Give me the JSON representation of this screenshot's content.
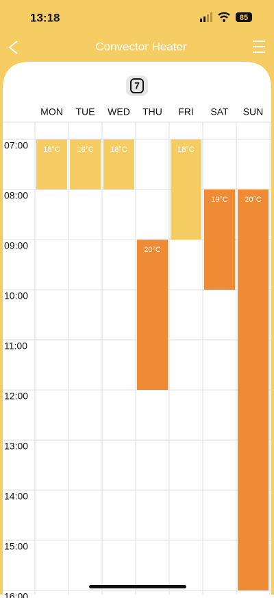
{
  "status_bar": {
    "time": "13:18",
    "battery": "85"
  },
  "header": {
    "title": "Convector Heater"
  },
  "program_icon": "7",
  "hours": [
    {
      "value": 7,
      "label": "07:00"
    },
    {
      "value": 8,
      "label": "08:00"
    },
    {
      "value": 9,
      "label": "09:00"
    },
    {
      "value": 10,
      "label": "10:00"
    },
    {
      "value": 11,
      "label": "11:00"
    },
    {
      "value": 12,
      "label": "12:00"
    },
    {
      "value": 13,
      "label": "13:00"
    },
    {
      "value": 14,
      "label": "14:00"
    },
    {
      "value": 15,
      "label": "15:00"
    },
    {
      "value": 16,
      "label": "16:00"
    }
  ],
  "days": [
    {
      "name": "MON",
      "blocks": [
        {
          "from": 7,
          "to": 8,
          "label": "18°C",
          "color": "#f5cd63"
        }
      ]
    },
    {
      "name": "TUE",
      "blocks": [
        {
          "from": 7,
          "to": 8,
          "label": "18°C",
          "color": "#f5cd63"
        }
      ]
    },
    {
      "name": "WED",
      "blocks": [
        {
          "from": 7,
          "to": 8,
          "label": "18°C",
          "color": "#f5cd63"
        }
      ]
    },
    {
      "name": "THU",
      "blocks": [
        {
          "from": 9,
          "to": 12,
          "label": "20°C",
          "color": "#ef8a35"
        }
      ]
    },
    {
      "name": "FRI",
      "blocks": [
        {
          "from": 7,
          "to": 9,
          "label": "18°C",
          "color": "#f5cd63"
        }
      ]
    },
    {
      "name": "SAT",
      "blocks": [
        {
          "from": 8,
          "to": 10,
          "label": "19°C",
          "color": "#ef8a35"
        }
      ]
    },
    {
      "name": "SUN",
      "blocks": [
        {
          "from": 8,
          "to": 16,
          "label": "20°C",
          "color": "#ef8a35"
        }
      ]
    }
  ]
}
